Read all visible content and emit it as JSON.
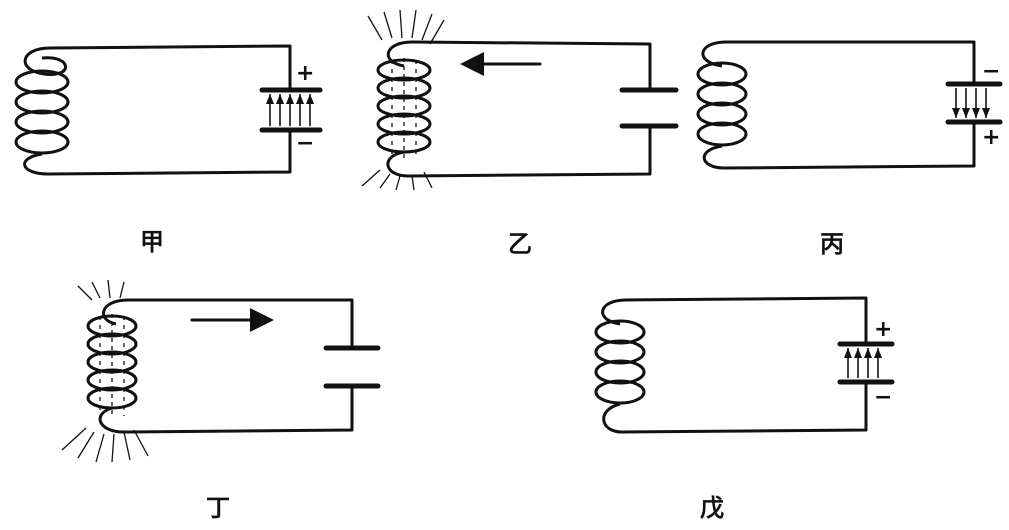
{
  "circuits": [
    {
      "id": "jia",
      "label": "甲",
      "top_sign": "+",
      "bottom_sign": "−"
    },
    {
      "id": "yi",
      "label": "乙"
    },
    {
      "id": "bing",
      "label": "丙",
      "top_sign": "−",
      "bottom_sign": "+"
    },
    {
      "id": "ding",
      "label": "丁"
    },
    {
      "id": "wu",
      "label": "戊",
      "top_sign": "+",
      "bottom_sign": "−"
    }
  ]
}
